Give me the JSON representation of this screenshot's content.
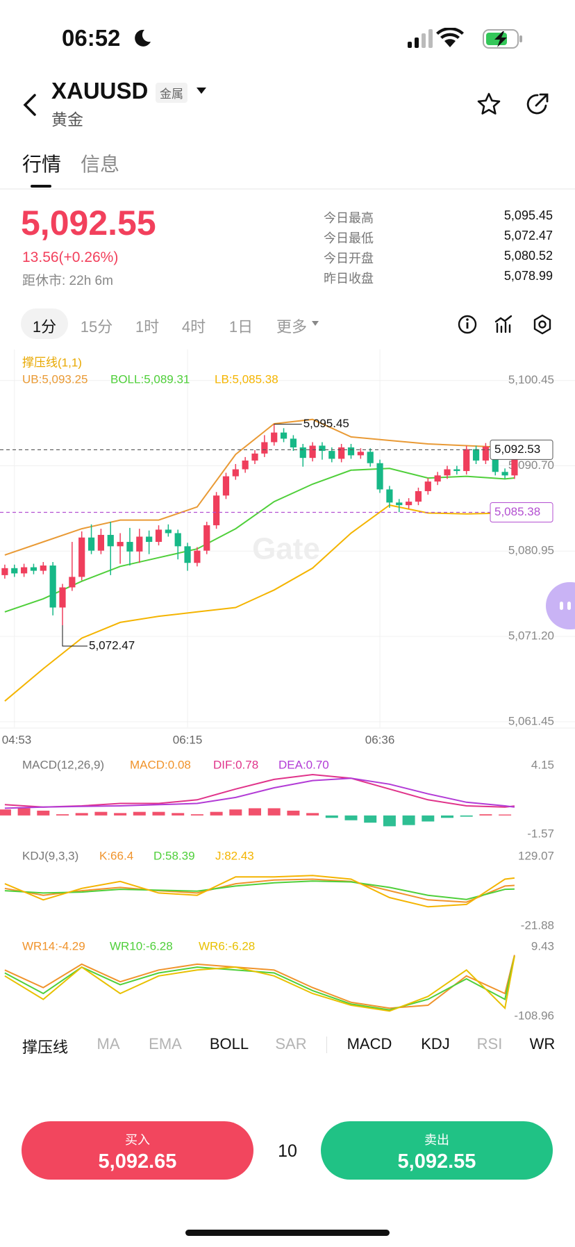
{
  "status": {
    "time": "06:52"
  },
  "header": {
    "symbol": "XAUUSD",
    "badge": "金属",
    "name": "黄金"
  },
  "tabs": [
    "行情",
    "信息"
  ],
  "quote": {
    "price": "5,092.55",
    "change": "13.56(+0.26%)",
    "close_in": "距休市: 22h 6m",
    "stats": [
      {
        "label": "今日最高",
        "value": "5,095.45"
      },
      {
        "label": "今日最低",
        "value": "5,072.47"
      },
      {
        "label": "今日开盘",
        "value": "5,080.52"
      },
      {
        "label": "昨日收盘",
        "value": "5,078.99"
      }
    ]
  },
  "intervals": [
    "1分",
    "15分",
    "1时",
    "4时",
    "1日",
    "更多"
  ],
  "chart_data": [
    {
      "type": "candlestick",
      "title": "撑压线(1,1)",
      "watermark": "Gate",
      "up_color": "#ef3e5c",
      "down_color": "#17b887",
      "categories": [
        null,
        "04:53",
        null,
        null,
        null,
        null,
        null,
        null,
        null,
        null,
        null,
        null,
        null,
        null,
        null,
        null,
        null,
        null,
        null,
        "06:15",
        null,
        null,
        null,
        null,
        null,
        null,
        null,
        null,
        null,
        null,
        null,
        null,
        null,
        null,
        null,
        null,
        null,
        null,
        null,
        "06:36",
        null,
        null,
        null,
        null,
        null,
        null,
        null,
        null,
        null,
        null,
        null,
        null,
        null,
        null
      ],
      "open": [
        5078.2,
        5079.0,
        5078.4,
        5079.1,
        5078.7,
        5079.3,
        5074.5,
        5076.8,
        5078.0,
        5082.5,
        5081.0,
        5082.8,
        5081.5,
        5082.0,
        5080.9,
        5082.6,
        5082.0,
        5083.4,
        5083.0,
        5081.5,
        5079.6,
        5081.0,
        5083.9,
        5087.3,
        5089.5,
        5090.3,
        5091.3,
        5092.1,
        5093.4,
        5094.5,
        5093.8,
        5092.8,
        5091.6,
        5093.0,
        5092.4,
        5091.5,
        5092.8,
        5091.9,
        5092.3,
        5091.0,
        5088.0,
        5086.5,
        5086.2,
        5086.6,
        5087.8,
        5088.9,
        5089.6,
        5090.3,
        5090.1,
        5092.6,
        5091.3,
        5092.9,
        5090.0,
        5089.6
      ],
      "high": [
        5079.4,
        5079.4,
        5079.5,
        5079.5,
        5079.7,
        5079.7,
        5077.2,
        5082.0,
        5083.2,
        5084.0,
        5083.5,
        5084.3,
        5083.0,
        5083.6,
        5083.5,
        5083.3,
        5083.9,
        5084.0,
        5083.4,
        5081.9,
        5081.4,
        5084.3,
        5087.7,
        5089.9,
        5090.9,
        5091.7,
        5092.5,
        5094.2,
        5095.45,
        5095.0,
        5094.2,
        5093.2,
        5093.4,
        5093.4,
        5092.8,
        5093.2,
        5093.2,
        5092.7,
        5092.7,
        5091.4,
        5088.4,
        5086.9,
        5087.0,
        5088.2,
        5089.3,
        5090.0,
        5090.7,
        5090.7,
        5093.0,
        5093.0,
        5093.3,
        5093.3,
        5090.4,
        5092.95
      ],
      "low": [
        5077.8,
        5078.0,
        5078.0,
        5078.3,
        5078.3,
        5073.6,
        5072.47,
        5076.4,
        5077.6,
        5080.6,
        5080.6,
        5078.2,
        5079.5,
        5079.3,
        5079.6,
        5080.6,
        5081.6,
        5082.6,
        5080.0,
        5078.7,
        5079.2,
        5080.6,
        5083.5,
        5086.9,
        5089.1,
        5089.9,
        5090.9,
        5091.7,
        5093.0,
        5093.4,
        5092.4,
        5090.6,
        5091.2,
        5091.4,
        5091.1,
        5091.1,
        5091.5,
        5091.5,
        5090.6,
        5087.6,
        5085.9,
        5085.4,
        5085.8,
        5086.2,
        5087.4,
        5088.5,
        5089.2,
        5089.7,
        5089.7,
        5090.9,
        5090.9,
        5089.6,
        5089.2,
        5089.2
      ],
      "close": [
        5079.0,
        5078.4,
        5079.1,
        5078.7,
        5079.3,
        5074.5,
        5076.8,
        5078.0,
        5082.5,
        5081.0,
        5082.8,
        5081.5,
        5082.0,
        5080.9,
        5082.6,
        5082.0,
        5083.4,
        5083.0,
        5081.5,
        5079.6,
        5081.0,
        5083.9,
        5087.3,
        5089.5,
        5090.3,
        5091.3,
        5092.1,
        5093.4,
        5094.5,
        5093.8,
        5092.8,
        5091.6,
        5093.0,
        5092.4,
        5091.5,
        5092.8,
        5091.9,
        5092.3,
        5091.0,
        5088.0,
        5086.5,
        5086.2,
        5086.6,
        5087.8,
        5088.9,
        5089.6,
        5090.3,
        5090.1,
        5092.6,
        5091.3,
        5092.9,
        5090.0,
        5089.6,
        5092.55
      ],
      "high_label": "5,095.45",
      "low_label": "5,072.47",
      "series": [
        {
          "name": "UB:5,093.25",
          "color": "#e99a35",
          "x": [
            0,
            4,
            8,
            12,
            16,
            20,
            24,
            28,
            32,
            36,
            40,
            44,
            48,
            52,
            53
          ],
          "values": [
            5080.5,
            5082,
            5083.5,
            5084.5,
            5084.5,
            5086,
            5092,
            5095.5,
            5096,
            5094,
            5093.6,
            5093.2,
            5093,
            5092.8,
            5093.25
          ]
        },
        {
          "name": "BOLL:5,089.31",
          "color": "#4fcf3a",
          "x": [
            0,
            4,
            8,
            12,
            16,
            20,
            24,
            28,
            32,
            36,
            40,
            44,
            48,
            52,
            53
          ],
          "values": [
            5074,
            5075.5,
            5077.5,
            5079.2,
            5080.2,
            5081.2,
            5083.5,
            5086.6,
            5088.6,
            5090.2,
            5090.4,
            5089.3,
            5089.5,
            5089.2,
            5089.31
          ]
        },
        {
          "name": "LB:5,085.38",
          "color": "#f4b400",
          "x": [
            0,
            4,
            8,
            12,
            16,
            20,
            24,
            28,
            32,
            36,
            40,
            44,
            48,
            52,
            53
          ],
          "values": [
            5063.8,
            5067.5,
            5071,
            5072.8,
            5073.5,
            5074,
            5074.5,
            5076.5,
            5079,
            5083,
            5086.2,
            5085.3,
            5085.2,
            5085.3,
            5085.38
          ]
        }
      ],
      "price_lines": [
        {
          "value": 5092.53,
          "label": "5,092.53",
          "color": "#555555"
        },
        {
          "value": 5085.38,
          "label": "5,085.38",
          "color": "#b34fd1"
        }
      ],
      "ylim": [
        5060.8,
        5104.0
      ],
      "yticks": [
        {
          "value": 5100.45,
          "label": "5,100.45"
        },
        {
          "value": 5090.7,
          "label": "5,090.70"
        },
        {
          "value": 5080.95,
          "label": "5,080.95"
        },
        {
          "value": 5071.2,
          "label": "5,071.20"
        },
        {
          "value": 5061.45,
          "label": "5,061.45"
        }
      ],
      "grid": true
    },
    {
      "type": "combo",
      "title": "MACD(12,26,9)",
      "up_color": "#ef3e5c",
      "down_color": "#17b887",
      "bars": {
        "name": "MACD:0.08",
        "color": "#f0932b",
        "x": [
          0,
          2,
          4,
          6,
          8,
          10,
          12,
          14,
          16,
          18,
          20,
          22,
          24,
          26,
          28,
          30,
          32,
          34,
          36,
          38,
          40,
          42,
          44,
          46,
          48,
          50,
          52
        ],
        "values": [
          0.5,
          0.6,
          0.4,
          0.1,
          0.2,
          0.3,
          0.2,
          0.3,
          0.3,
          0.2,
          0.1,
          0.3,
          0.5,
          0.6,
          0.6,
          0.4,
          0.2,
          -0.2,
          -0.4,
          -0.6,
          -0.9,
          -0.8,
          -0.5,
          -0.2,
          -0.1,
          0.1,
          0.08
        ]
      },
      "series": [
        {
          "name": "DIF:0.78",
          "color": "#e0338a",
          "x": [
            0,
            4,
            8,
            12,
            16,
            20,
            24,
            28,
            32,
            36,
            40,
            44,
            48,
            52,
            53
          ],
          "values": [
            0.9,
            0.7,
            0.8,
            1.0,
            1.0,
            1.3,
            2.2,
            3.0,
            3.4,
            3.1,
            2.2,
            1.3,
            0.8,
            0.7,
            0.78
          ]
        },
        {
          "name": "DEA:0.70",
          "color": "#b23bd6",
          "x": [
            0,
            4,
            8,
            12,
            16,
            20,
            24,
            28,
            32,
            36,
            40,
            44,
            48,
            52,
            53
          ],
          "values": [
            0.6,
            0.7,
            0.75,
            0.8,
            0.9,
            1.0,
            1.5,
            2.3,
            2.9,
            3.1,
            2.6,
            1.8,
            1.1,
            0.8,
            0.7
          ]
        }
      ],
      "ylim": [
        -1.57,
        4.15
      ],
      "yticks": [
        4.15,
        -1.57
      ]
    },
    {
      "type": "line",
      "title": "KDJ(9,3,3)",
      "series": [
        {
          "name": "K:66.4",
          "color": "#f0932b",
          "x": [
            0,
            4,
            8,
            12,
            16,
            20,
            24,
            28,
            32,
            36,
            40,
            44,
            48,
            52,
            53
          ],
          "values": [
            60,
            45,
            55,
            62,
            55,
            50,
            70,
            78,
            80,
            75,
            55,
            35,
            30,
            65,
            66.4
          ]
        },
        {
          "name": "D:58.39",
          "color": "#4fcf3a",
          "x": [
            0,
            4,
            8,
            12,
            16,
            20,
            24,
            28,
            32,
            36,
            40,
            44,
            48,
            52,
            53
          ],
          "values": [
            55,
            50,
            52,
            58,
            56,
            54,
            65,
            72,
            76,
            74,
            62,
            45,
            36,
            58,
            58.39
          ]
        },
        {
          "name": "J:82.43",
          "color": "#f4b400",
          "x": [
            0,
            4,
            8,
            12,
            16,
            20,
            24,
            28,
            32,
            36,
            40,
            44,
            48,
            52,
            53
          ],
          "values": [
            70,
            35,
            60,
            75,
            50,
            45,
            85,
            85,
            88,
            80,
            40,
            20,
            25,
            80,
            82.43
          ]
        }
      ],
      "ylim": [
        -21.88,
        129.07
      ],
      "yticks": [
        129.07,
        -21.88
      ]
    },
    {
      "type": "line",
      "series": [
        {
          "name": "WR14:-4.29",
          "color": "#f0932b",
          "x": [
            0,
            4,
            8,
            12,
            16,
            20,
            24,
            28,
            32,
            36,
            40,
            44,
            48,
            52,
            53
          ],
          "values": [
            -30,
            -60,
            -20,
            -50,
            -30,
            -20,
            -25,
            -30,
            -60,
            -85,
            -95,
            -90,
            -40,
            -70,
            -4.29
          ]
        },
        {
          "name": "WR10:-6.28",
          "color": "#4fcf3a",
          "x": [
            0,
            4,
            8,
            12,
            16,
            20,
            24,
            28,
            32,
            36,
            40,
            44,
            48,
            52,
            53
          ],
          "values": [
            -35,
            -70,
            -25,
            -55,
            -35,
            -25,
            -30,
            -35,
            -65,
            -88,
            -98,
            -80,
            -45,
            -80,
            -6.28
          ]
        },
        {
          "name": "WR6:-6.28",
          "color": "#e8c000",
          "x": [
            0,
            4,
            8,
            12,
            16,
            20,
            24,
            28,
            32,
            36,
            40,
            44,
            48,
            52,
            53
          ],
          "values": [
            -40,
            -80,
            -25,
            -70,
            -40,
            -30,
            -25,
            -40,
            -70,
            -90,
            -100,
            -75,
            -30,
            -95,
            -6.28
          ]
        }
      ],
      "ylim": [
        -108.96,
        9.43
      ],
      "yticks": [
        9.43,
        -108.96
      ]
    }
  ],
  "indicator_tabs": [
    "撑压线",
    "MA",
    "EMA",
    "BOLL",
    "SAR",
    "MACD",
    "KDJ",
    "RSI",
    "WR"
  ],
  "trade": {
    "buy_label": "买入",
    "buy_price": "5,092.65",
    "quantity": "10",
    "sell_label": "卖出",
    "sell_price": "5,092.55"
  }
}
